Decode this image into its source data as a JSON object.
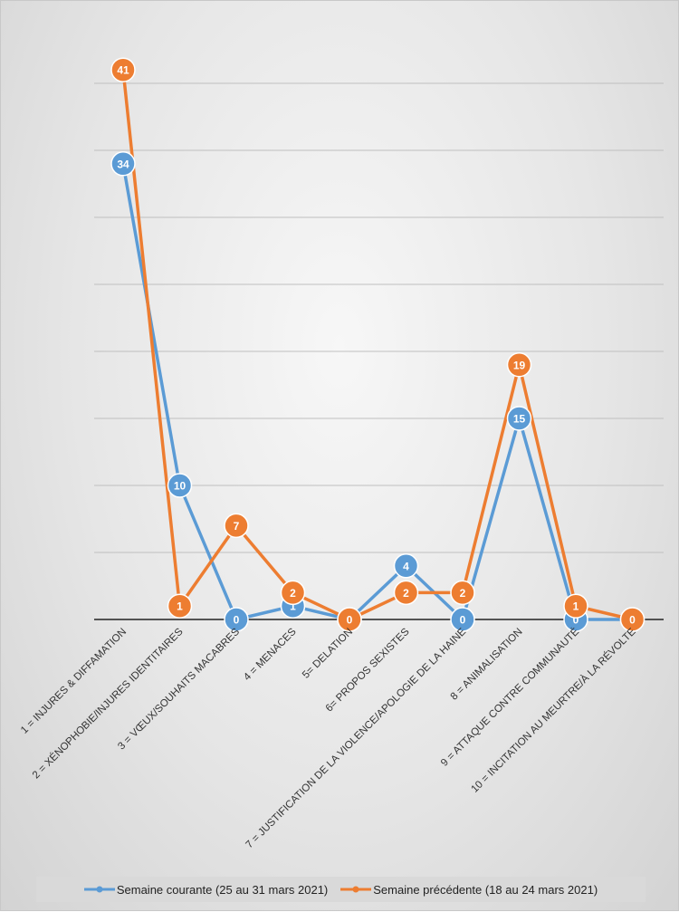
{
  "chart_data": {
    "type": "line",
    "categories": [
      "1 = INJURES & DIFFAMATION",
      "2 = XÉNOPHOBIE/INJURES IDENTITAIRES",
      "3 = VŒUX/SOUHAITS MACABRES",
      "4 = MENACES",
      "5= DELATION",
      "6= PROPOS SEXISTES",
      "7 = JUSTIFICATION DE LA VIOLENCE/APOLOGIE DE LA HAINE",
      "8 = ANIMALISATION",
      "9 = ATTAQUE CONTRE COMMUNAUTÉ",
      "10 = INCITATION AU MEURTRE/À LA RÉVOLTE"
    ],
    "series": [
      {
        "name": "Semaine courante (25 au 31 mars 2021)",
        "color": "#5b9bd5",
        "values": [
          34,
          10,
          0,
          1,
          0,
          4,
          0,
          15,
          0,
          0
        ]
      },
      {
        "name": "Semaine précédente (18 au 24 mars 2021)",
        "color": "#ed7d31",
        "values": [
          41,
          1,
          7,
          2,
          0,
          2,
          2,
          19,
          1,
          0
        ]
      }
    ],
    "ylim": [
      0,
      40
    ],
    "gridlines": true,
    "y_tick_labels_visible": false,
    "legend_position": "bottom"
  }
}
